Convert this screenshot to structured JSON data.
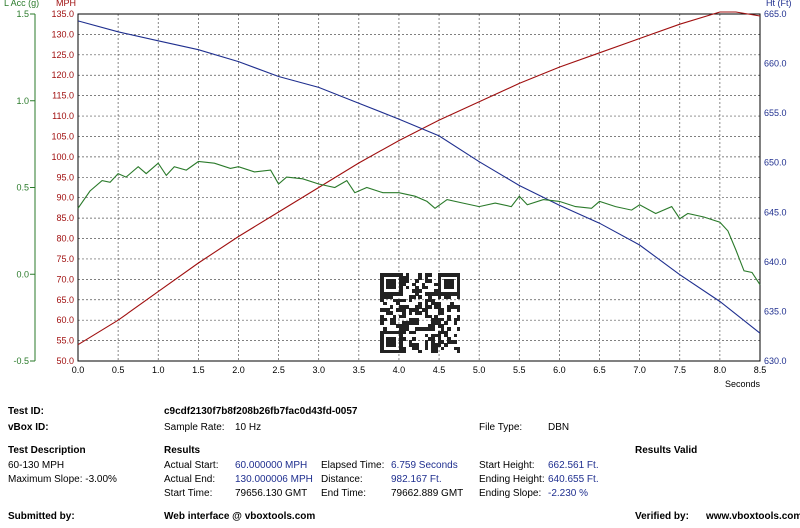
{
  "chart_data": {
    "type": "line",
    "xlabel": "Seconds",
    "xlim": [
      0.0,
      8.5
    ],
    "x_ticks": [
      "0.0",
      "0.5",
      "1.0",
      "1.5",
      "2.0",
      "2.5",
      "3.0",
      "3.5",
      "4.0",
      "4.5",
      "5.0",
      "5.5",
      "6.0",
      "6.5",
      "7.0",
      "7.5",
      "8.0",
      "8.5"
    ],
    "grid": true,
    "axes": {
      "lacc": {
        "label": "L Acc (g)",
        "color": "#2a7a2a",
        "range": [
          -0.5,
          1.5
        ],
        "ticks": [
          "-0.5",
          "0.0",
          "0.5",
          "1.0",
          "1.5"
        ]
      },
      "mph": {
        "label": "MPH",
        "color": "#a01010",
        "range": [
          50.0,
          135.0
        ],
        "ticks": [
          "50.0",
          "55.0",
          "60.0",
          "65.0",
          "70.0",
          "75.0",
          "80.0",
          "85.0",
          "90.0",
          "95.0",
          "100.0",
          "105.0",
          "110.0",
          "115.0",
          "120.0",
          "125.0",
          "130.0",
          "135.0"
        ]
      },
      "ht": {
        "label": "Ht (Ft)",
        "color": "#1f2f8f",
        "range": [
          630.0,
          665.0
        ],
        "ticks": [
          "630.0",
          "635.0",
          "640.0",
          "645.0",
          "650.0",
          "655.0",
          "660.0",
          "665.0"
        ]
      }
    },
    "series": [
      {
        "axis": "mph",
        "color": "#a01010",
        "x": [
          0.0,
          0.5,
          1.0,
          1.5,
          2.0,
          2.5,
          3.0,
          3.5,
          4.0,
          4.5,
          5.0,
          5.5,
          6.0,
          6.5,
          7.0,
          7.5,
          8.0,
          8.2,
          8.5
        ],
        "y": [
          54,
          60,
          67,
          74,
          80.5,
          86.5,
          92.5,
          98.5,
          104,
          109,
          113.5,
          118,
          122,
          125.5,
          129,
          132.5,
          135.5,
          135.5,
          134.5
        ]
      },
      {
        "axis": "ht",
        "color": "#1f2f8f",
        "x": [
          0.0,
          0.5,
          1.0,
          1.5,
          2.0,
          2.5,
          3.0,
          3.5,
          4.0,
          4.5,
          5.0,
          5.5,
          6.0,
          6.5,
          7.0,
          7.5,
          8.0,
          8.5
        ],
        "y": [
          664.3,
          663.2,
          662.3,
          661.4,
          660.2,
          658.7,
          657.6,
          656.0,
          654.4,
          652.7,
          650.1,
          647.7,
          645.7,
          643.9,
          641.7,
          638.7,
          636.0,
          632.8
        ]
      },
      {
        "axis": "lacc",
        "color": "#2a7a2a",
        "x": [
          0.0,
          0.15,
          0.3,
          0.4,
          0.5,
          0.6,
          0.75,
          0.85,
          1.0,
          1.1,
          1.2,
          1.35,
          1.5,
          1.7,
          1.9,
          2.0,
          2.2,
          2.4,
          2.5,
          2.6,
          2.8,
          3.0,
          3.2,
          3.35,
          3.45,
          3.6,
          3.8,
          4.0,
          4.2,
          4.35,
          4.45,
          4.6,
          4.8,
          5.0,
          5.2,
          5.4,
          5.5,
          5.6,
          5.8,
          6.0,
          6.2,
          6.4,
          6.5,
          6.7,
          6.9,
          7.0,
          7.2,
          7.4,
          7.5,
          7.6,
          7.8,
          8.0,
          8.1,
          8.2,
          8.3,
          8.4,
          8.5
        ],
        "y": [
          0.38,
          0.48,
          0.54,
          0.53,
          0.58,
          0.56,
          0.62,
          0.58,
          0.64,
          0.57,
          0.62,
          0.6,
          0.65,
          0.64,
          0.61,
          0.62,
          0.59,
          0.6,
          0.52,
          0.56,
          0.55,
          0.52,
          0.5,
          0.54,
          0.47,
          0.5,
          0.47,
          0.47,
          0.45,
          0.42,
          0.38,
          0.43,
          0.41,
          0.39,
          0.41,
          0.39,
          0.45,
          0.4,
          0.43,
          0.42,
          0.39,
          0.38,
          0.42,
          0.39,
          0.37,
          0.4,
          0.35,
          0.39,
          0.32,
          0.35,
          0.33,
          0.3,
          0.25,
          0.14,
          0.02,
          0.01,
          -0.06
        ]
      }
    ]
  },
  "test_id": {
    "label": "Test ID:",
    "value": "c9cdf2130f7b8f208b26fb7fac0d43fd-0057"
  },
  "vbox_id": {
    "label": "vBox ID:"
  },
  "sample_rate": {
    "label": "Sample Rate:",
    "value": "10 Hz"
  },
  "file_type": {
    "label": "File Type:",
    "value": "DBN"
  },
  "test_description": {
    "heading": "Test Description",
    "line1": "60-130 MPH",
    "line2": "Maximum Slope:  -3.00%"
  },
  "results": {
    "heading": "Results",
    "actual_start": {
      "label": "Actual Start:",
      "value": "60.000000 MPH"
    },
    "actual_end": {
      "label": "Actual End:",
      "value": "130.000006 MPH"
    },
    "start_time": {
      "label": "Start Time:",
      "value": "79656.130 GMT"
    },
    "elapsed_time": {
      "label": "Elapsed Time:",
      "value": "6.759 Seconds"
    },
    "distance": {
      "label": "Distance:",
      "value": "982.167 Ft."
    },
    "end_time": {
      "label": "End Time:",
      "value": "79662.889 GMT"
    },
    "start_height": {
      "label": "Start Height:",
      "value": "662.561 Ft."
    },
    "ending_height": {
      "label": "Ending Height:",
      "value": "640.655 Ft."
    },
    "ending_slope": {
      "label": "Ending Slope:",
      "value": "-2.230 %"
    }
  },
  "results_valid": "Results Valid",
  "footer": {
    "submitted_by": "Submitted by:",
    "web_interface": "Web interface @ vboxtools.com",
    "verified_by": "Verified by:",
    "verified_value": "www.vboxtools.com"
  }
}
